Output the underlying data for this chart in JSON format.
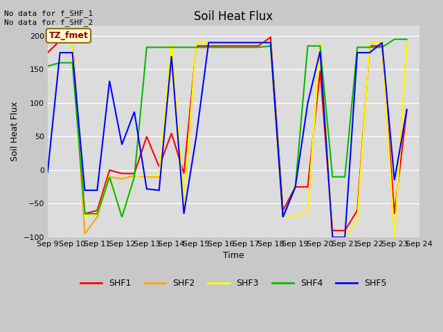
{
  "title": "Soil Heat Flux",
  "ylabel": "Soil Heat Flux",
  "xlabel": "Time",
  "ylim": [
    -100,
    215
  ],
  "annotation_text": "No data for f_SHF_1\nNo data for f_SHF_2",
  "legend_box_text": "TZ_fmet",
  "x_labels": [
    "Sep 9",
    "Sep 10",
    "Sep 11",
    "Sep 12",
    "Sep 13",
    "Sep 14",
    "Sep 15",
    "Sep 16",
    "Sep 17",
    "Sep 18",
    "Sep 19",
    "Sep 20",
    "Sep 21",
    "Sep 22",
    "Sep 23",
    "Sep 24"
  ],
  "series": {
    "SHF1": {
      "color": "#FF0000",
      "x": [
        9,
        9.5,
        10,
        10.5,
        11,
        11.5,
        12,
        12.5,
        13,
        13.5,
        14,
        14.5,
        15,
        15.5,
        16,
        16.5,
        17,
        17.5,
        18,
        18.5,
        19,
        19.5,
        20,
        20.5,
        21,
        21.5,
        22,
        22.5,
        23,
        23.5
      ],
      "y": [
        175,
        193,
        193,
        -65,
        -60,
        0,
        -5,
        -5,
        50,
        5,
        55,
        -5,
        185,
        185,
        185,
        185,
        185,
        185,
        198,
        -60,
        -25,
        -25,
        148,
        -90,
        -90,
        -60,
        185,
        185,
        -65,
        90
      ]
    },
    "SHF2": {
      "color": "#FFA500",
      "x": [
        9,
        9.5,
        10,
        10.5,
        11,
        11.5,
        12,
        12.5,
        13,
        13.5,
        14,
        14.5,
        15,
        15.5,
        16,
        16.5,
        17,
        17.5,
        18,
        18.5,
        19,
        19.5,
        20,
        20.5,
        21,
        21.5,
        22,
        22.5,
        23,
        23.5
      ],
      "y": [
        190,
        190,
        190,
        -95,
        -70,
        -10,
        -13,
        -8,
        -10,
        -10,
        190,
        -50,
        190,
        190,
        190,
        190,
        190,
        190,
        190,
        -70,
        -70,
        -60,
        190,
        -100,
        -100,
        -75,
        190,
        190,
        -100,
        190
      ]
    },
    "SHF3": {
      "color": "#FFFF00",
      "x": [
        9,
        9.5,
        10,
        10.5,
        11,
        11.5,
        12,
        12.5,
        13,
        13.5,
        14,
        14.5,
        15,
        15.5,
        16,
        16.5,
        17,
        17.5,
        18,
        18.5,
        19,
        19.5,
        20,
        20.5,
        21,
        21.5,
        22,
        22.5,
        23,
        23.5
      ],
      "y": [
        190,
        190,
        190,
        -70,
        -65,
        -8,
        -70,
        -8,
        -8,
        -8,
        190,
        -50,
        190,
        190,
        190,
        190,
        190,
        190,
        190,
        -70,
        -70,
        -60,
        190,
        -100,
        -100,
        -75,
        190,
        190,
        -100,
        190
      ]
    },
    "SHF4": {
      "color": "#00BB00",
      "x": [
        9,
        9.5,
        10,
        10.5,
        11,
        11.5,
        12,
        12.5,
        13,
        13.5,
        14,
        14.5,
        15,
        15.5,
        16,
        16.5,
        17,
        17.5,
        18,
        18.5,
        19,
        19.5,
        20,
        20.5,
        21,
        21.5,
        22,
        22.5,
        23,
        23.5
      ],
      "y": [
        155,
        160,
        160,
        -65,
        -65,
        -10,
        -70,
        -10,
        183,
        183,
        183,
        183,
        183,
        183,
        183,
        183,
        183,
        183,
        185,
        -70,
        -25,
        185,
        185,
        -10,
        -10,
        183,
        183,
        183,
        195,
        195
      ]
    },
    "SHF5": {
      "color": "#0000FF",
      "x": [
        9,
        9.5,
        10,
        10.5,
        11,
        11.5,
        12,
        12.5,
        13,
        13.5,
        14,
        14.5,
        15,
        15.5,
        16,
        16.5,
        17,
        17.5,
        18,
        18.5,
        19,
        19.5,
        20,
        20.5,
        21,
        21.5,
        22,
        22.5,
        23,
        23.5
      ],
      "y": [
        -3,
        175,
        175,
        -30,
        -30,
        133,
        38,
        87,
        -28,
        -30,
        170,
        -65,
        50,
        190,
        190,
        190,
        190,
        190,
        190,
        -70,
        -25,
        100,
        177,
        -100,
        -100,
        175,
        175,
        190,
        -15,
        90
      ]
    }
  },
  "fig_bg": "#c8c8c8",
  "plot_bg": "#dcdcdc",
  "grid_color": "#ffffff",
  "title_fontsize": 12,
  "label_fontsize": 9,
  "tick_fontsize": 8,
  "legend_fontsize": 9
}
